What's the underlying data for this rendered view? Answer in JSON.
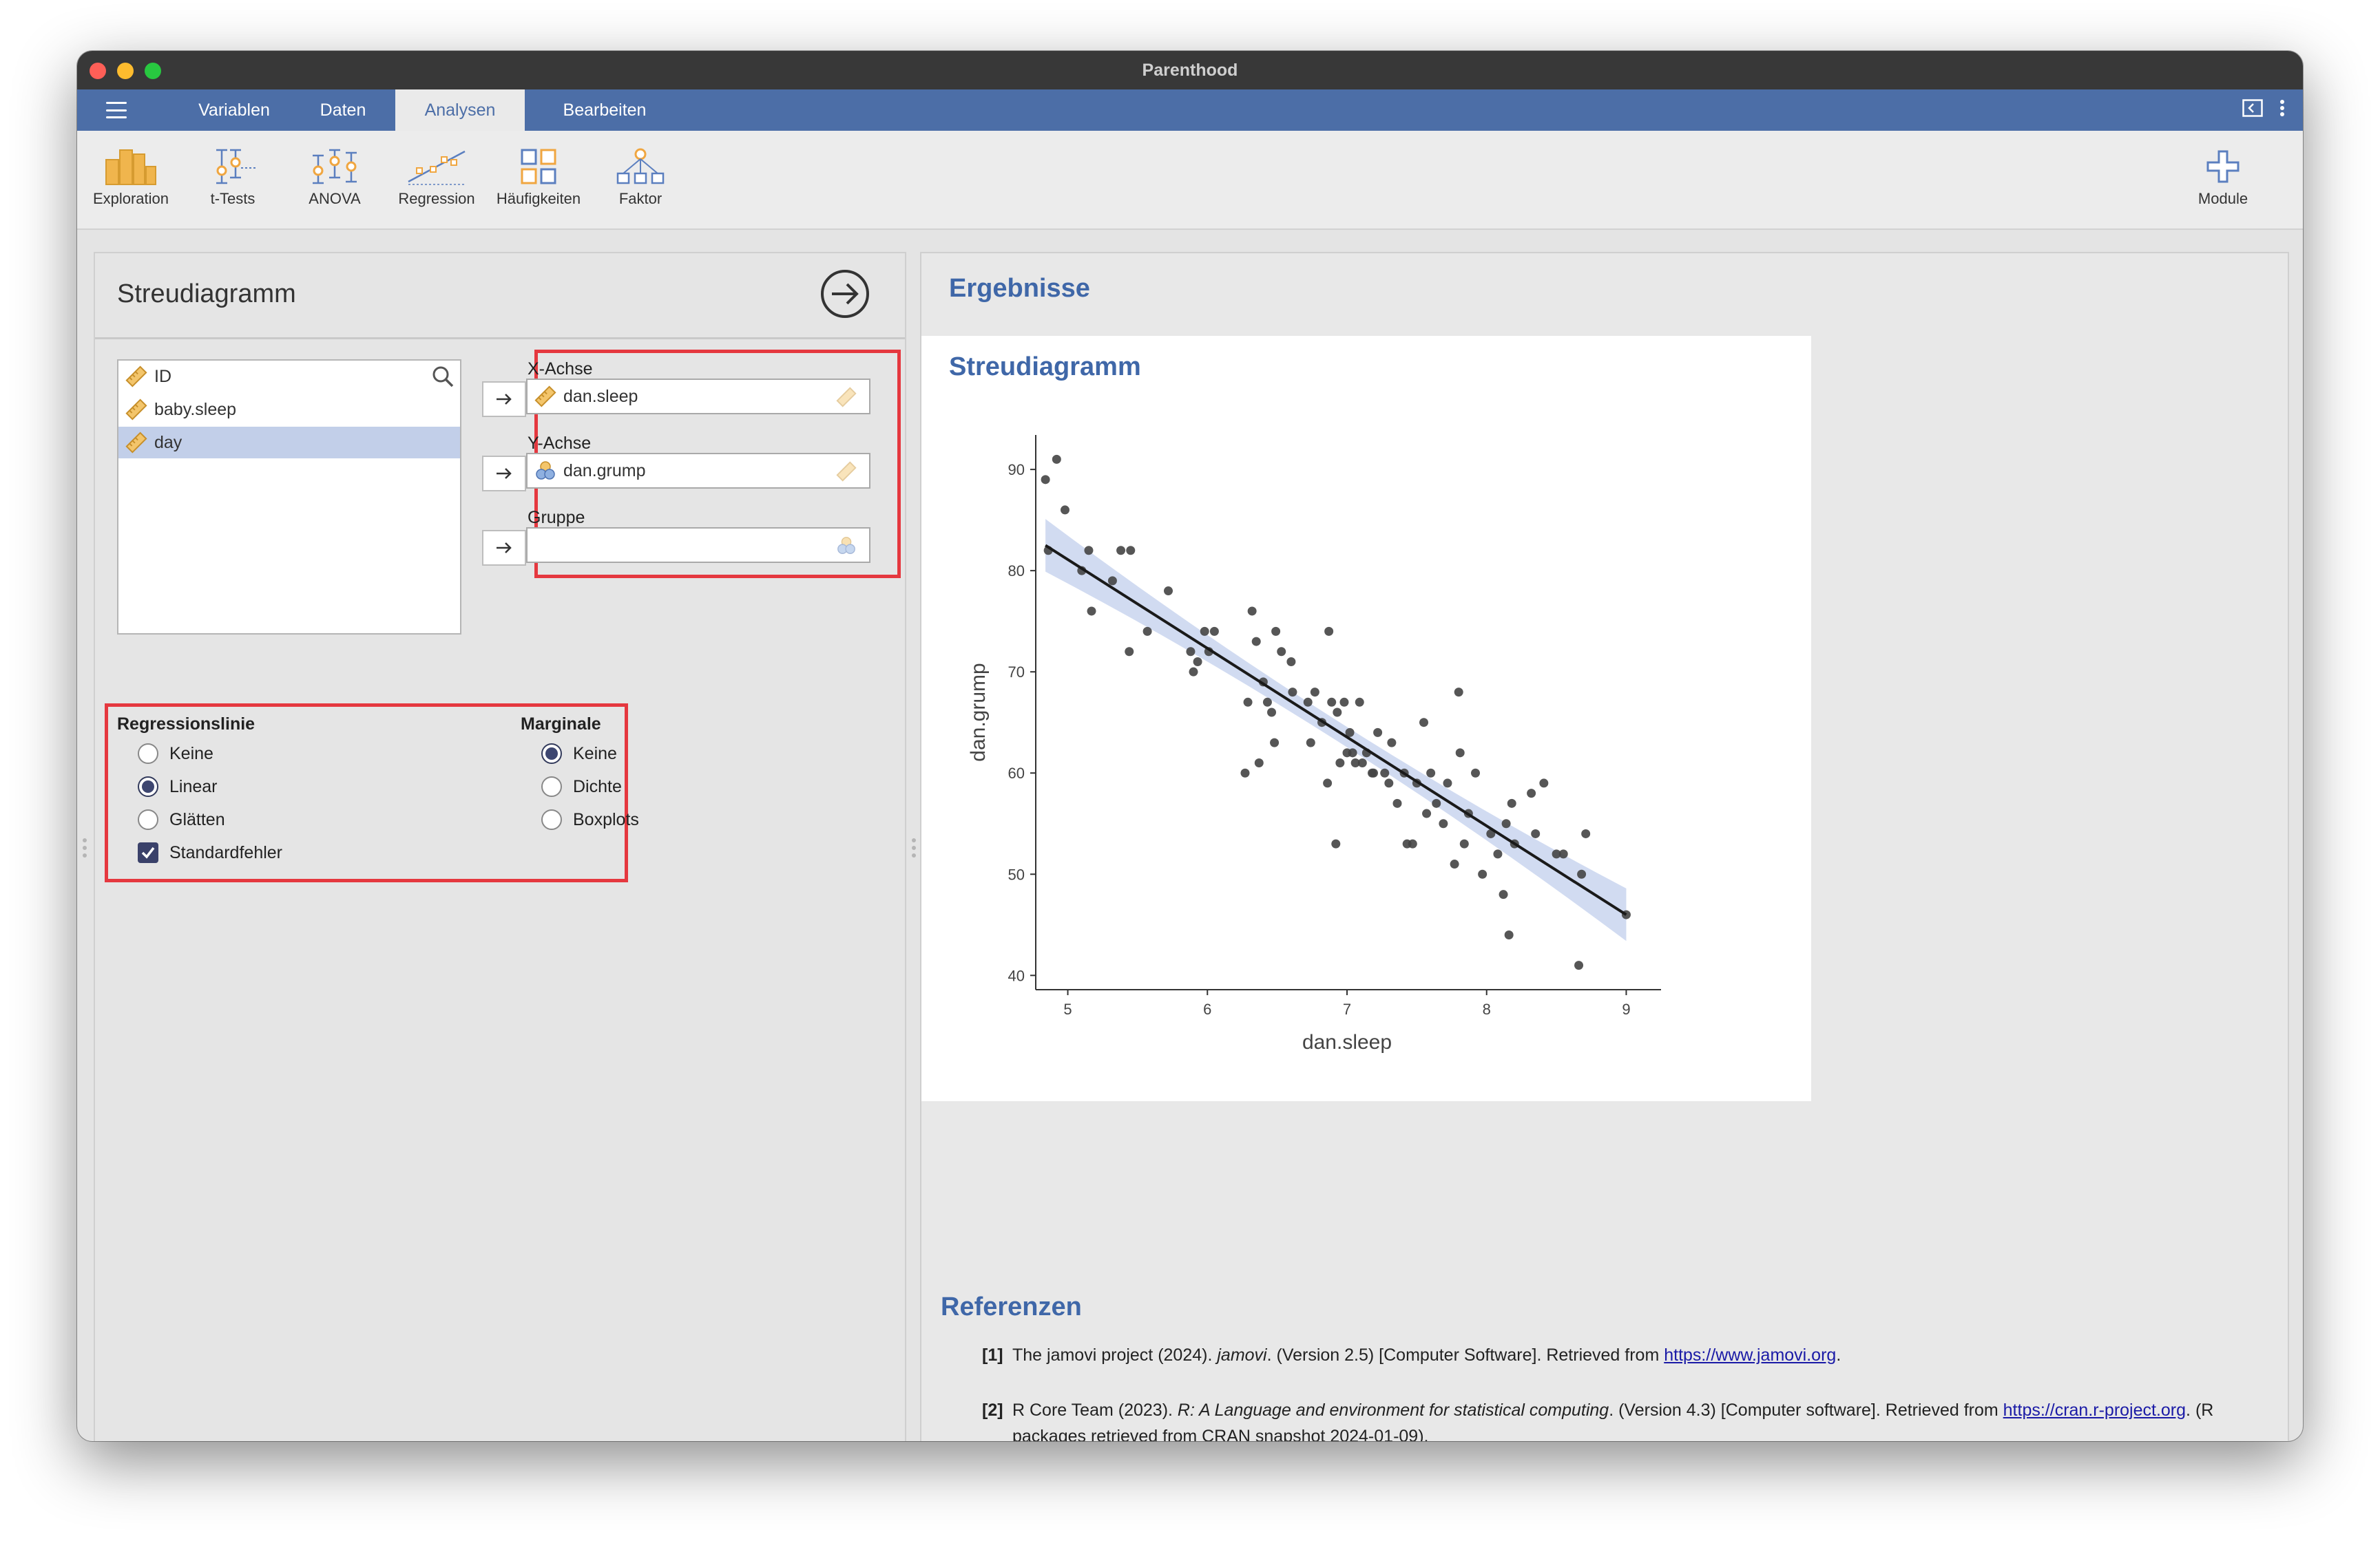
{
  "window": {
    "title": "Parenthood"
  },
  "menubar": {
    "tabs": [
      {
        "label": "Variablen",
        "active": false
      },
      {
        "label": "Daten",
        "active": false
      },
      {
        "label": "Analysen",
        "active": true
      },
      {
        "label": "Bearbeiten",
        "active": false
      }
    ]
  },
  "ribbon": {
    "items": [
      {
        "label": "Exploration",
        "icon": "exploration-icon"
      },
      {
        "label": "t-Tests",
        "icon": "t-tests-icon"
      },
      {
        "label": "ANOVA",
        "icon": "anova-icon"
      },
      {
        "label": "Regression",
        "icon": "regression-icon"
      },
      {
        "label": "Häufigkeiten",
        "icon": "frequencies-icon"
      },
      {
        "label": "Faktor",
        "icon": "factor-icon"
      }
    ],
    "modules_label": "Module"
  },
  "options": {
    "title": "Streudiagramm",
    "variables": [
      {
        "name": "ID",
        "type": "continuous",
        "selected": false
      },
      {
        "name": "baby.sleep",
        "type": "continuous",
        "selected": false
      },
      {
        "name": "day",
        "type": "continuous",
        "selected": true
      }
    ],
    "x_axis": {
      "label": "X-Achse",
      "value": "dan.sleep"
    },
    "y_axis": {
      "label": "Y-Achse",
      "value": "dan.grump"
    },
    "group": {
      "label": "Gruppe",
      "value": ""
    },
    "regression_line": {
      "heading": "Regressionslinie",
      "choices": [
        "Keine",
        "Linear",
        "Glätten"
      ],
      "selected": "Linear",
      "standard_error_label": "Standardfehler",
      "standard_error": true
    },
    "marginal": {
      "heading": "Marginale",
      "choices": [
        "Keine",
        "Dichte",
        "Boxplots"
      ],
      "selected": "Keine"
    }
  },
  "results": {
    "title": "Ergebnisse",
    "card_title": "Streudiagramm",
    "refs_title": "Referenzen",
    "refs": [
      {
        "num": "[1]",
        "pre": "The jamovi project (2024). ",
        "italic": "jamovi",
        "post": ". (Version 2.5) [Computer Software]. Retrieved from ",
        "link": "https://www.jamovi.org",
        "tail": "."
      },
      {
        "num": "[2]",
        "pre": "R Core Team (2023). ",
        "italic": "R: A Language and environment for statistical computing",
        "post": ". (Version 4.3) [Computer software]. Retrieved from ",
        "link": "https://cran.r-project.org",
        "tail": ". (R packages retrieved from CRAN snapshot 2024-01-09)."
      }
    ]
  },
  "chart_data": {
    "type": "scatter",
    "xlabel": "dan.sleep",
    "ylabel": "dan.grump",
    "xlim": [
      4.8,
      9.2
    ],
    "ylim": [
      39,
      93
    ],
    "xticks": [
      5,
      6,
      7,
      8,
      9
    ],
    "yticks": [
      40,
      50,
      60,
      70,
      80,
      90
    ],
    "grid": false,
    "regression": {
      "method": "linear",
      "x0": 4.84,
      "y0": 82.5,
      "x1": 9.0,
      "y1": 46.0,
      "se_band": true
    },
    "colors": {
      "points": "#444444",
      "line": "#1a1a1a",
      "band": "#c9d5ee"
    },
    "points": [
      [
        4.86,
        82
      ],
      [
        4.84,
        89
      ],
      [
        4.92,
        91
      ],
      [
        4.98,
        86
      ],
      [
        5.1,
        80
      ],
      [
        5.15,
        82
      ],
      [
        5.17,
        76
      ],
      [
        5.32,
        79
      ],
      [
        5.38,
        82
      ],
      [
        5.45,
        82
      ],
      [
        5.44,
        72
      ],
      [
        5.57,
        74
      ],
      [
        5.72,
        78
      ],
      [
        5.88,
        72
      ],
      [
        5.9,
        70
      ],
      [
        5.93,
        71
      ],
      [
        5.98,
        74
      ],
      [
        6.01,
        72
      ],
      [
        6.05,
        74
      ],
      [
        6.27,
        60
      ],
      [
        6.29,
        67
      ],
      [
        6.32,
        76
      ],
      [
        6.35,
        73
      ],
      [
        6.37,
        61
      ],
      [
        6.4,
        69
      ],
      [
        6.43,
        67
      ],
      [
        6.46,
        66
      ],
      [
        6.48,
        63
      ],
      [
        6.49,
        74
      ],
      [
        6.53,
        72
      ],
      [
        6.6,
        71
      ],
      [
        6.61,
        68
      ],
      [
        6.72,
        67
      ],
      [
        6.74,
        63
      ],
      [
        6.77,
        68
      ],
      [
        6.82,
        65
      ],
      [
        6.86,
        59
      ],
      [
        6.87,
        74
      ],
      [
        6.89,
        67
      ],
      [
        6.92,
        53
      ],
      [
        6.93,
        66
      ],
      [
        6.95,
        61
      ],
      [
        6.98,
        67
      ],
      [
        7.0,
        62
      ],
      [
        7.02,
        64
      ],
      [
        7.04,
        62
      ],
      [
        7.06,
        61
      ],
      [
        7.09,
        67
      ],
      [
        7.11,
        61
      ],
      [
        7.14,
        62
      ],
      [
        7.18,
        60
      ],
      [
        7.19,
        60
      ],
      [
        7.22,
        64
      ],
      [
        7.27,
        60
      ],
      [
        7.3,
        59
      ],
      [
        7.32,
        63
      ],
      [
        7.36,
        57
      ],
      [
        7.41,
        60
      ],
      [
        7.43,
        53
      ],
      [
        7.47,
        53
      ],
      [
        7.5,
        59
      ],
      [
        7.55,
        65
      ],
      [
        7.57,
        56
      ],
      [
        7.6,
        60
      ],
      [
        7.64,
        57
      ],
      [
        7.69,
        55
      ],
      [
        7.72,
        59
      ],
      [
        7.77,
        51
      ],
      [
        7.8,
        68
      ],
      [
        7.81,
        62
      ],
      [
        7.84,
        53
      ],
      [
        7.87,
        56
      ],
      [
        7.92,
        60
      ],
      [
        7.97,
        50
      ],
      [
        8.03,
        54
      ],
      [
        8.08,
        52
      ],
      [
        8.12,
        48
      ],
      [
        8.14,
        55
      ],
      [
        8.16,
        44
      ],
      [
        8.18,
        57
      ],
      [
        8.2,
        53
      ],
      [
        8.32,
        58
      ],
      [
        8.35,
        54
      ],
      [
        8.41,
        59
      ],
      [
        8.5,
        52
      ],
      [
        8.55,
        52
      ],
      [
        8.66,
        41
      ],
      [
        8.68,
        50
      ],
      [
        8.71,
        54
      ],
      [
        9.0,
        46
      ]
    ]
  }
}
